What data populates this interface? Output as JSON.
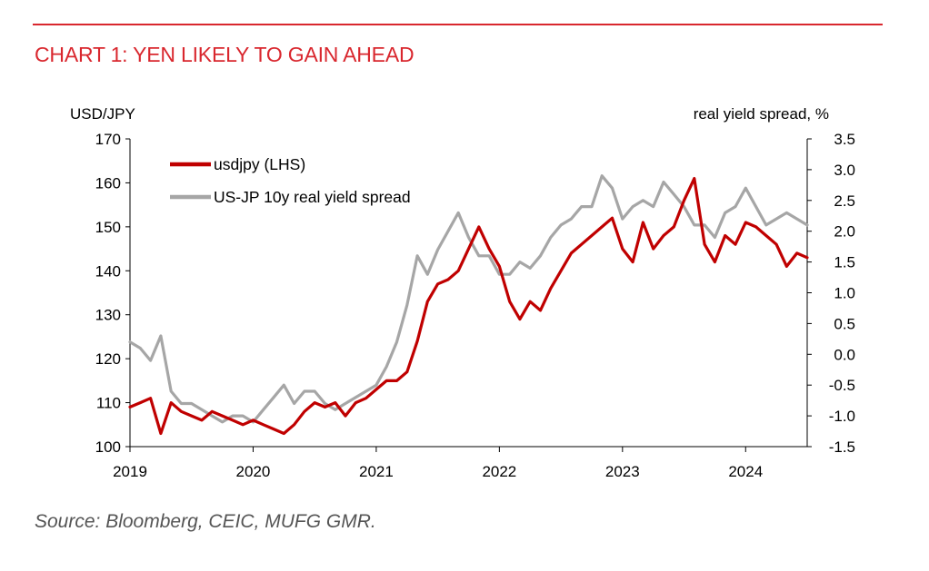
{
  "header": {
    "title": "CHART 1: YEN LIKELY TO GAIN AHEAD",
    "source": "Source: Bloomberg, CEIC, MUFG GMR."
  },
  "colors": {
    "accent": "#d9272e",
    "usdjpy": "#c00000",
    "spread": "#a6a6a6"
  },
  "chart_data": {
    "type": "line",
    "title": "CHART 1: YEN LIKELY TO GAIN AHEAD",
    "y_left_label": "USD/JPY",
    "y_right_label": "real yield spread, %",
    "ylim_left": [
      100,
      170
    ],
    "ylim_right": [
      -1.5,
      3.5
    ],
    "y_left_ticks": [
      "100",
      "110",
      "120",
      "130",
      "140",
      "150",
      "160",
      "170"
    ],
    "y_right_ticks": [
      "-1.5",
      "-1.0",
      "-0.5",
      "0.0",
      "0.5",
      "1.0",
      "1.5",
      "2.0",
      "2.5",
      "3.0",
      "3.5"
    ],
    "x_ticks": [
      "2019",
      "2020",
      "2021",
      "2022",
      "2023",
      "2024"
    ],
    "xlim": [
      "2019-01",
      "2024-07"
    ],
    "legend_position": "top-left",
    "grid": false,
    "series": [
      {
        "name": "usdjpy (LHS)",
        "axis": "left",
        "x": [
          "2019-01",
          "2019-02",
          "2019-03",
          "2019-04",
          "2019-05",
          "2019-06",
          "2019-07",
          "2019-08",
          "2019-09",
          "2019-10",
          "2019-11",
          "2019-12",
          "2020-01",
          "2020-02",
          "2020-03",
          "2020-04",
          "2020-05",
          "2020-06",
          "2020-07",
          "2020-08",
          "2020-09",
          "2020-10",
          "2020-11",
          "2020-12",
          "2021-01",
          "2021-02",
          "2021-03",
          "2021-04",
          "2021-05",
          "2021-06",
          "2021-07",
          "2021-08",
          "2021-09",
          "2021-10",
          "2021-11",
          "2021-12",
          "2022-01",
          "2022-02",
          "2022-03",
          "2022-04",
          "2022-05",
          "2022-06",
          "2022-07",
          "2022-08",
          "2022-09",
          "2022-10",
          "2022-11",
          "2022-12",
          "2023-01",
          "2023-02",
          "2023-03",
          "2023-04",
          "2023-05",
          "2023-06",
          "2023-07",
          "2023-08",
          "2023-09",
          "2023-10",
          "2023-11",
          "2023-12",
          "2024-01",
          "2024-02",
          "2024-03",
          "2024-04",
          "2024-05",
          "2024-06",
          "2024-07"
        ],
        "values": [
          109,
          110,
          111,
          103,
          110,
          108,
          107,
          106,
          108,
          107,
          106,
          105,
          106,
          105,
          104,
          103,
          105,
          108,
          110,
          109,
          110,
          107,
          110,
          111,
          113,
          115,
          115,
          117,
          124,
          133,
          137,
          138,
          140,
          145,
          150,
          145,
          141,
          133,
          129,
          133,
          131,
          136,
          140,
          144,
          146,
          148,
          150,
          152,
          145,
          142,
          151,
          145,
          148,
          150,
          156,
          161,
          146,
          142,
          148,
          146,
          151,
          150,
          148,
          146,
          141,
          144,
          143
        ]
      },
      {
        "name": "US-JP 10y real yield spread",
        "axis": "right",
        "x": [
          "2019-01",
          "2019-02",
          "2019-03",
          "2019-04",
          "2019-05",
          "2019-06",
          "2019-07",
          "2019-08",
          "2019-09",
          "2019-10",
          "2019-11",
          "2019-12",
          "2020-01",
          "2020-02",
          "2020-03",
          "2020-04",
          "2020-05",
          "2020-06",
          "2020-07",
          "2020-08",
          "2020-09",
          "2020-10",
          "2020-11",
          "2020-12",
          "2021-01",
          "2021-02",
          "2021-03",
          "2021-04",
          "2021-05",
          "2021-06",
          "2021-07",
          "2021-08",
          "2021-09",
          "2021-10",
          "2021-11",
          "2021-12",
          "2022-01",
          "2022-02",
          "2022-03",
          "2022-04",
          "2022-05",
          "2022-06",
          "2022-07",
          "2022-08",
          "2022-09",
          "2022-10",
          "2022-11",
          "2022-12",
          "2023-01",
          "2023-02",
          "2023-03",
          "2023-04",
          "2023-05",
          "2023-06",
          "2023-07",
          "2023-08",
          "2023-09",
          "2023-10",
          "2023-11",
          "2023-12",
          "2024-01",
          "2024-02",
          "2024-03",
          "2024-04",
          "2024-05",
          "2024-06",
          "2024-07"
        ],
        "values": [
          0.2,
          0.1,
          -0.1,
          0.3,
          -0.6,
          -0.8,
          -0.8,
          -0.9,
          -1.0,
          -1.1,
          -1.0,
          -1.0,
          -1.1,
          -0.9,
          -0.7,
          -0.5,
          -0.8,
          -0.6,
          -0.6,
          -0.8,
          -0.9,
          -0.8,
          -0.7,
          -0.6,
          -0.5,
          -0.2,
          0.2,
          0.8,
          1.6,
          1.3,
          1.7,
          2.0,
          2.3,
          1.9,
          1.6,
          1.6,
          1.3,
          1.3,
          1.5,
          1.4,
          1.6,
          1.9,
          2.1,
          2.2,
          2.4,
          2.4,
          2.9,
          2.7,
          2.2,
          2.4,
          2.5,
          2.4,
          2.8,
          2.6,
          2.4,
          2.1,
          2.1,
          1.9,
          2.3,
          2.4,
          2.7,
          2.4,
          2.1,
          2.2,
          2.3,
          2.2,
          2.1
        ]
      }
    ]
  }
}
